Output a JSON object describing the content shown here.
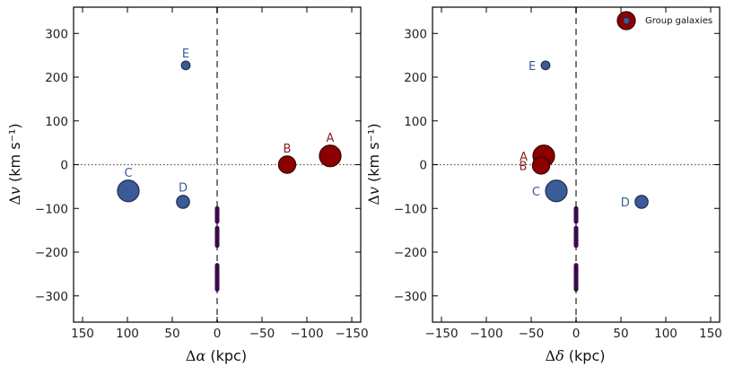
{
  "colors": {
    "member_fill": "#8b0000",
    "member_stroke": "#3a0000",
    "group_fill": "#3b5b98",
    "group_stroke": "#1e2d50",
    "label_red": "#8b1c1c",
    "label_blue": "#3b5b98",
    "cloud": "#3a0a4a"
  },
  "legend": {
    "label": "Group galaxies"
  },
  "chart_data": [
    {
      "type": "scatter",
      "panel": "left",
      "xlabel": "Δα (kpc)",
      "ylabel": "Δv (km s⁻¹)",
      "xlim": [
        160,
        -160
      ],
      "ylim": [
        -360,
        360
      ],
      "xticks": [
        150,
        100,
        50,
        0,
        -50,
        -100,
        -150
      ],
      "xtick_labels": [
        "150",
        "100",
        "50",
        "0",
        "−50",
        "−100",
        "−150"
      ],
      "yticks": [
        300,
        200,
        100,
        0,
        -100,
        -200,
        -300
      ],
      "ytick_labels": [
        "300",
        "200",
        "100",
        "0",
        "−100",
        "−200",
        "−300"
      ],
      "galaxies": [
        {
          "label": "A",
          "x": -126,
          "y": 20,
          "size": 10,
          "kind": "member",
          "label_pos": "above"
        },
        {
          "label": "B",
          "x": -78,
          "y": 0,
          "size": 8,
          "kind": "member",
          "label_pos": "above"
        },
        {
          "label": "C",
          "x": 99,
          "y": -60,
          "size": 10,
          "kind": "group",
          "label_pos": "above"
        },
        {
          "label": "D",
          "x": 38,
          "y": -85,
          "size": 6,
          "kind": "group",
          "label_pos": "above"
        },
        {
          "label": "E",
          "x": 35,
          "y": 227,
          "size": 4,
          "kind": "group",
          "label_pos": "above"
        }
      ],
      "absorber_ranges": [
        {
          "x": 0,
          "y_from": -100,
          "y_to": -130
        },
        {
          "x": 0,
          "y_from": -145,
          "y_to": -185
        },
        {
          "x": 0,
          "y_from": -230,
          "y_to": -285
        }
      ]
    },
    {
      "type": "scatter",
      "panel": "right",
      "xlabel": "Δδ (kpc)",
      "ylabel": "Δv (km s⁻¹)",
      "xlim": [
        -160,
        160
      ],
      "ylim": [
        -360,
        360
      ],
      "xticks": [
        -150,
        -100,
        -50,
        0,
        50,
        100,
        150
      ],
      "xtick_labels": [
        "−150",
        "−100",
        "−50",
        "0",
        "50",
        "100",
        "150"
      ],
      "yticks": [
        300,
        200,
        100,
        0,
        -100,
        -200,
        -300
      ],
      "ytick_labels": [
        "300",
        "200",
        "100",
        "0",
        "−100",
        "−200",
        "−300"
      ],
      "galaxies": [
        {
          "label": "A",
          "x": -36,
          "y": 20,
          "size": 10,
          "kind": "member",
          "label_pos": "left"
        },
        {
          "label": "B",
          "x": -39,
          "y": -2,
          "size": 8,
          "kind": "member",
          "label_pos": "left"
        },
        {
          "label": "C",
          "x": -22,
          "y": -60,
          "size": 10,
          "kind": "group",
          "label_pos": "left"
        },
        {
          "label": "D",
          "x": 73,
          "y": -85,
          "size": 6,
          "kind": "group",
          "label_pos": "left"
        },
        {
          "label": "E",
          "x": -34,
          "y": 227,
          "size": 4,
          "kind": "group",
          "label_pos": "left"
        }
      ],
      "absorber_ranges": [
        {
          "x": 0,
          "y_from": -100,
          "y_to": -130
        },
        {
          "x": 0,
          "y_from": -145,
          "y_to": -185
        },
        {
          "x": 0,
          "y_from": -230,
          "y_to": -285
        }
      ]
    }
  ]
}
